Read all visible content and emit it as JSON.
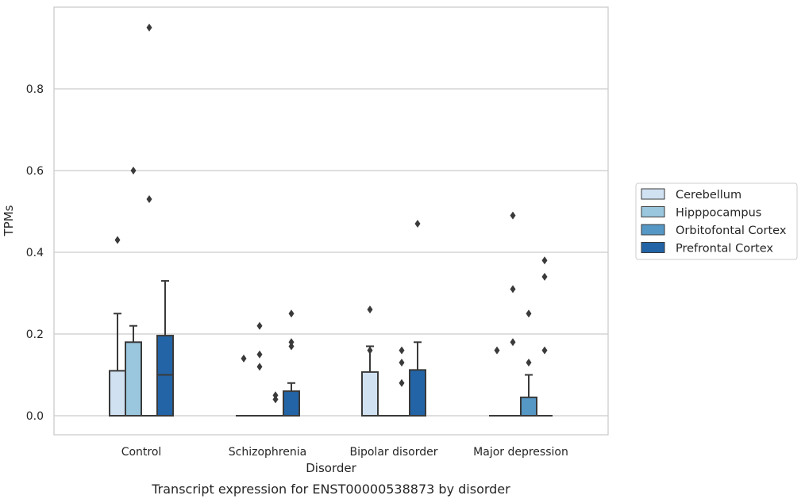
{
  "chart_data": {
    "type": "box",
    "xlabel": "Disorder",
    "ylabel": "TPMs",
    "ylim": [
      -0.045,
      1.0
    ],
    "yticks": [
      0.0,
      0.2,
      0.4,
      0.6,
      0.8
    ],
    "ytick_labels": [
      "0.0",
      "0.2",
      "0.4",
      "0.6",
      "0.8"
    ],
    "grid": "horizontal",
    "legend_position": "right",
    "categories": [
      "Control",
      "Schizophrenia",
      "Bipolar disorder",
      "Major depression"
    ],
    "series": [
      {
        "name": "Cerebellum",
        "color": "#d0e1f2",
        "boxes": [
          {
            "q1": 0.0,
            "median": 0.0,
            "q3": 0.11,
            "whisker_low": 0.0,
            "whisker_high": 0.25,
            "outliers": [
              0.43
            ]
          },
          {
            "q1": 0.0,
            "median": 0.0,
            "q3": 0.0,
            "whisker_low": 0.0,
            "whisker_high": 0.0,
            "outliers": [
              0.14
            ]
          },
          {
            "q1": 0.0,
            "median": 0.0,
            "q3": 0.107,
            "whisker_low": 0.0,
            "whisker_high": 0.17,
            "outliers": [
              0.26,
              0.16
            ]
          },
          {
            "q1": 0.0,
            "median": 0.0,
            "q3": 0.0,
            "whisker_low": 0.0,
            "whisker_high": 0.0,
            "outliers": [
              0.16
            ]
          }
        ]
      },
      {
        "name": "Hipppocampus",
        "color": "#9ac7de",
        "boxes": [
          {
            "q1": 0.0,
            "median": 0.0,
            "q3": 0.18,
            "whisker_low": 0.0,
            "whisker_high": 0.22,
            "outliers": [
              0.6
            ]
          },
          {
            "q1": 0.0,
            "median": 0.0,
            "q3": 0.0,
            "whisker_low": 0.0,
            "whisker_high": 0.0,
            "outliers": [
              0.22,
              0.15,
              0.12
            ]
          },
          {
            "q1": 0.0,
            "median": 0.0,
            "q3": 0.0,
            "whisker_low": 0.0,
            "whisker_high": 0.0,
            "outliers": []
          },
          {
            "q1": 0.0,
            "median": 0.0,
            "q3": 0.0,
            "whisker_low": 0.0,
            "whisker_high": 0.0,
            "outliers": [
              0.49,
              0.31,
              0.18
            ]
          }
        ]
      },
      {
        "name": "Orbitofontal Cortex",
        "color": "#5598c6",
        "boxes": [
          {
            "q1": 0.0,
            "median": 0.0,
            "q3": 0.0,
            "whisker_low": 0.0,
            "whisker_high": 0.0,
            "outliers": [
              0.95,
              0.53
            ]
          },
          {
            "q1": 0.0,
            "median": 0.0,
            "q3": 0.0,
            "whisker_low": 0.0,
            "whisker_high": 0.0,
            "outliers": [
              0.05,
              0.04
            ]
          },
          {
            "q1": 0.0,
            "median": 0.0,
            "q3": 0.0,
            "whisker_low": 0.0,
            "whisker_high": 0.0,
            "outliers": [
              0.16,
              0.13,
              0.08
            ]
          },
          {
            "q1": 0.0,
            "median": 0.0,
            "q3": 0.045,
            "whisker_low": 0.0,
            "whisker_high": 0.1,
            "outliers": [
              0.25,
              0.13
            ]
          }
        ]
      },
      {
        "name": "Prefrontal Cortex",
        "color": "#2264a6",
        "boxes": [
          {
            "q1": 0.0,
            "median": 0.1,
            "q3": 0.196,
            "whisker_low": 0.0,
            "whisker_high": 0.33,
            "outliers": []
          },
          {
            "q1": 0.0,
            "median": 0.0,
            "q3": 0.06,
            "whisker_low": 0.0,
            "whisker_high": 0.08,
            "outliers": [
              0.25,
              0.18,
              0.17
            ]
          },
          {
            "q1": 0.0,
            "median": 0.0,
            "q3": 0.112,
            "whisker_low": 0.0,
            "whisker_high": 0.18,
            "outliers": [
              0.47
            ]
          },
          {
            "q1": 0.0,
            "median": 0.0,
            "q3": 0.0,
            "whisker_low": 0.0,
            "whisker_high": 0.0,
            "outliers": [
              0.38,
              0.34,
              0.16
            ]
          }
        ]
      }
    ]
  },
  "caption": "Transcript expression for ENST00000538873 by disorder"
}
